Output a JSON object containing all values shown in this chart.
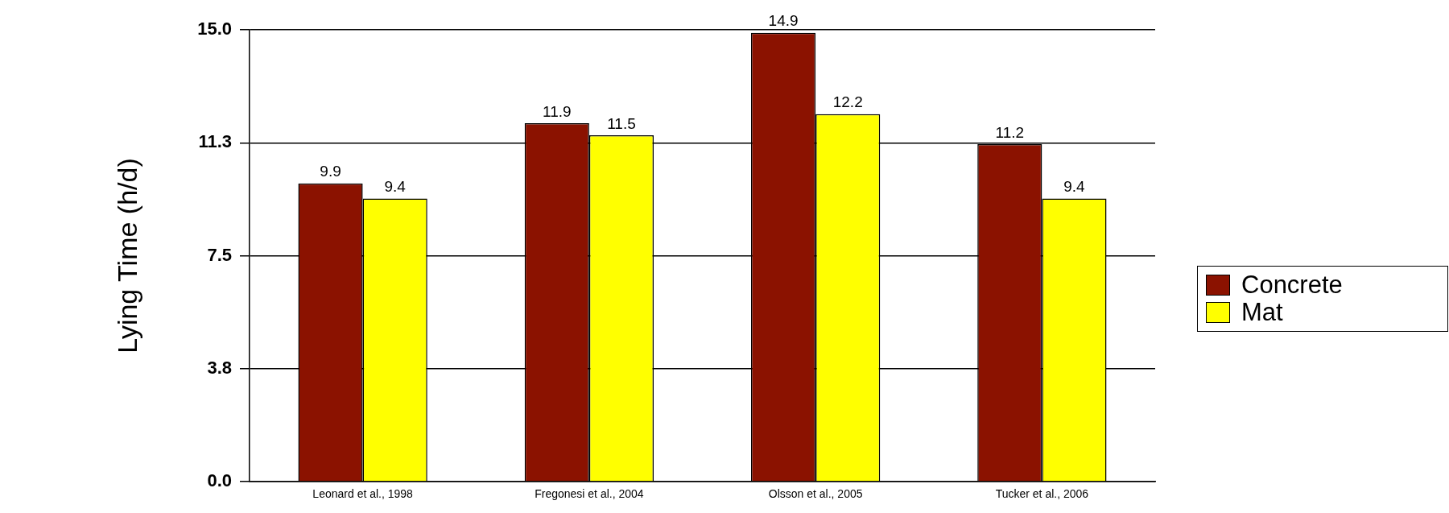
{
  "chart_data": {
    "type": "bar",
    "ylabel": "Lying Time (h/d)",
    "categories": [
      "Leonard et al., 1998",
      "Fregonesi et al., 2004",
      "Olsson et al., 2005",
      "Tucker et al., 2006"
    ],
    "series": [
      {
        "name": "Concrete",
        "color": "#8b1200",
        "values": [
          9.9,
          11.9,
          14.9,
          11.2
        ]
      },
      {
        "name": "Mat",
        "color": "#ffff00",
        "values": [
          9.4,
          11.5,
          12.2,
          9.4
        ]
      }
    ],
    "ylim": [
      0,
      15
    ],
    "yticks": [
      {
        "value": 0,
        "label": "0.0"
      },
      {
        "value": 3.75,
        "label": "3.8"
      },
      {
        "value": 7.5,
        "label": "7.5"
      },
      {
        "value": 11.25,
        "label": "11.3"
      },
      {
        "value": 15,
        "label": "15.0"
      }
    ],
    "grid": "y",
    "legend": "right",
    "data_labels": true
  }
}
